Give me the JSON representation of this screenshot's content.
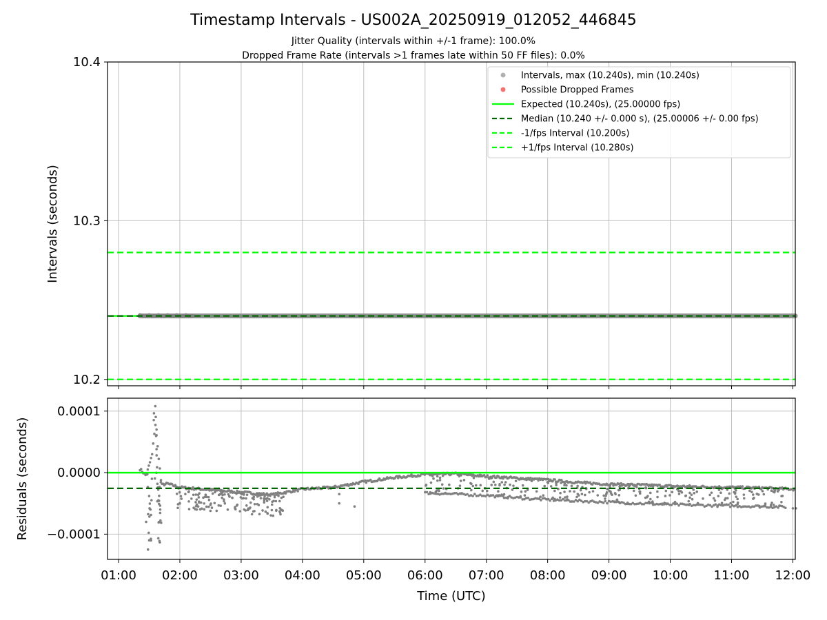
{
  "header": {
    "title": "Timestamp Intervals - US002A_20250919_012052_446845",
    "subtitle_line1": "Jitter Quality (intervals within +/-1 frame): 100.0%",
    "subtitle_line2": "Dropped Frame Rate (intervals >1 frames late within 50 FF files): 0.0%"
  },
  "colors": {
    "points": "#808080",
    "dropped": "#f05a5a",
    "expected": "#00ff00",
    "median": "#006400",
    "fps_interval": "#00ff00"
  },
  "chart_data": [
    {
      "type": "scatter",
      "panel": "intervals",
      "ylabel": "Intervals (seconds)",
      "ylim": [
        10.196,
        10.4
      ],
      "yticks": [
        10.2,
        10.3,
        10.4
      ],
      "ytick_labels": [
        "10.2",
        "10.3",
        "10.4"
      ],
      "xlim": [
        0.82,
        12.04
      ],
      "x_unit": "hours UTC",
      "series": [
        {
          "name": "Intervals, max (10.240s), min (10.240s)",
          "kind": "points",
          "x_range": [
            1.35,
            12.04
          ],
          "y": 10.24
        },
        {
          "name": "Possible Dropped Frames",
          "kind": "points",
          "points": []
        }
      ],
      "reference_lines": [
        {
          "name": "Expected (10.240s), (25.00000 fps)",
          "y": 10.24,
          "style": "solid"
        },
        {
          "name": "Median (10.240 +/- 0.000 s), (25.00006 +/- 0.00 fps)",
          "y": 10.24,
          "style": "dashed"
        },
        {
          "name": "-1/fps Interval (10.200s)",
          "y": 10.2,
          "style": "dashed"
        },
        {
          "name": "+1/fps Interval (10.280s)",
          "y": 10.28,
          "style": "dashed"
        }
      ],
      "legend": [
        {
          "label": "Intervals, max (10.240s), min (10.240s)",
          "marker": "dot",
          "color": "#a9a9a9"
        },
        {
          "label": "Possible Dropped Frames",
          "marker": "dot",
          "color": "#f05a5a"
        },
        {
          "label": "Expected (10.240s), (25.00000 fps)",
          "marker": "solid",
          "color": "#00ff00"
        },
        {
          "label": "Median (10.240 +/- 0.000 s), (25.00006 +/- 0.00 fps)",
          "marker": "dashed",
          "color": "#006400"
        },
        {
          "label": "-1/fps Interval (10.200s)",
          "marker": "dashed",
          "color": "#00ff00"
        },
        {
          "label": "+1/fps Interval (10.280s)",
          "marker": "dashed",
          "color": "#00ff00"
        }
      ],
      "legend_position": "top-right"
    },
    {
      "type": "scatter",
      "panel": "residuals",
      "ylabel": "Residuals (seconds)",
      "xlabel": "Time (UTC)",
      "ylim": [
        -0.000141,
        0.000121
      ],
      "yticks": [
        0.0001,
        0.0,
        -0.0001
      ],
      "ytick_labels": [
        "0.0001",
        "0.0000",
        "−0.0001"
      ],
      "xlim": [
        0.82,
        12.04
      ],
      "xticks": [
        1,
        2,
        3,
        4,
        5,
        6,
        7,
        8,
        9,
        10,
        11,
        12
      ],
      "xtick_labels": [
        "01:00",
        "02:00",
        "03:00",
        "04:00",
        "05:00",
        "06:00",
        "07:00",
        "08:00",
        "09:00",
        "10:00",
        "11:00",
        "12:00"
      ],
      "reference_lines": [
        {
          "name": "expected",
          "y": 0.0,
          "style": "solid"
        },
        {
          "name": "median",
          "y": -2.55e-05,
          "style": "dashed"
        }
      ],
      "series": [
        {
          "name": "upper band",
          "points": [
            [
              1.35,
              6e-06
            ],
            [
              1.45,
              -5e-06
            ],
            [
              1.55,
              3e-05
            ],
            [
              1.6,
              8e-05
            ],
            [
              1.7,
              -2e-05
            ],
            [
              1.8,
              -1.8e-05
            ],
            [
              2.0,
              -2.4e-05
            ],
            [
              2.5,
              -2.8e-05
            ],
            [
              3.0,
              -3.2e-05
            ],
            [
              3.5,
              -3.6e-05
            ],
            [
              4.0,
              -2.7e-05
            ],
            [
              4.5,
              -2.4e-05
            ],
            [
              5.0,
              -1.5e-05
            ],
            [
              5.5,
              -8e-06
            ],
            [
              6.0,
              -3e-06
            ],
            [
              6.5,
              -2e-06
            ],
            [
              7.0,
              -6e-06
            ],
            [
              7.5,
              -9e-06
            ],
            [
              8.0,
              -1.2e-05
            ],
            [
              8.5,
              -1.6e-05
            ],
            [
              9.0,
              -1.9e-05
            ],
            [
              9.5,
              -2e-05
            ],
            [
              10.0,
              -2.2e-05
            ],
            [
              10.5,
              -2.3e-05
            ],
            [
              11.0,
              -2.4e-05
            ],
            [
              11.5,
              -2.5e-05
            ],
            [
              12.0,
              -2.7e-05
            ]
          ]
        },
        {
          "name": "lower band",
          "points": [
            [
              6.0,
              -3.3e-05
            ],
            [
              6.5,
              -3.5e-05
            ],
            [
              7.0,
              -3.7e-05
            ],
            [
              7.5,
              -4.1e-05
            ],
            [
              8.0,
              -4.4e-05
            ],
            [
              8.5,
              -4.6e-05
            ],
            [
              9.0,
              -4.8e-05
            ],
            [
              9.5,
              -5e-05
            ],
            [
              10.0,
              -5.2e-05
            ],
            [
              10.5,
              -5.3e-05
            ],
            [
              11.0,
              -5.4e-05
            ],
            [
              11.5,
              -5.5e-05
            ],
            [
              11.9,
              -5.6e-05
            ]
          ]
        },
        {
          "name": "scattered",
          "points": [
            [
              1.45,
              -8e-05
            ],
            [
              1.48,
              -0.000125
            ],
            [
              1.5,
              -0.00011
            ],
            [
              1.52,
              -6e-05
            ],
            [
              1.6,
              0.000108
            ],
            [
              1.62,
              7e-05
            ],
            [
              1.65,
              -4.5e-05
            ],
            [
              1.68,
              -6e-05
            ],
            [
              2.0,
              -5e-05
            ],
            [
              2.3,
              -5.5e-05
            ],
            [
              2.6,
              -6.2e-05
            ],
            [
              2.9,
              -5.8e-05
            ],
            [
              3.2,
              -6.3e-05
            ],
            [
              3.5,
              -6.1e-05
            ],
            [
              3.65,
              -6e-05
            ],
            [
              4.6,
              -5e-05
            ],
            [
              4.6,
              -3.5e-05
            ],
            [
              4.85,
              -5.5e-05
            ],
            [
              12.0,
              -5.8e-05
            ],
            [
              12.05,
              -5.8e-05
            ]
          ]
        }
      ]
    }
  ]
}
